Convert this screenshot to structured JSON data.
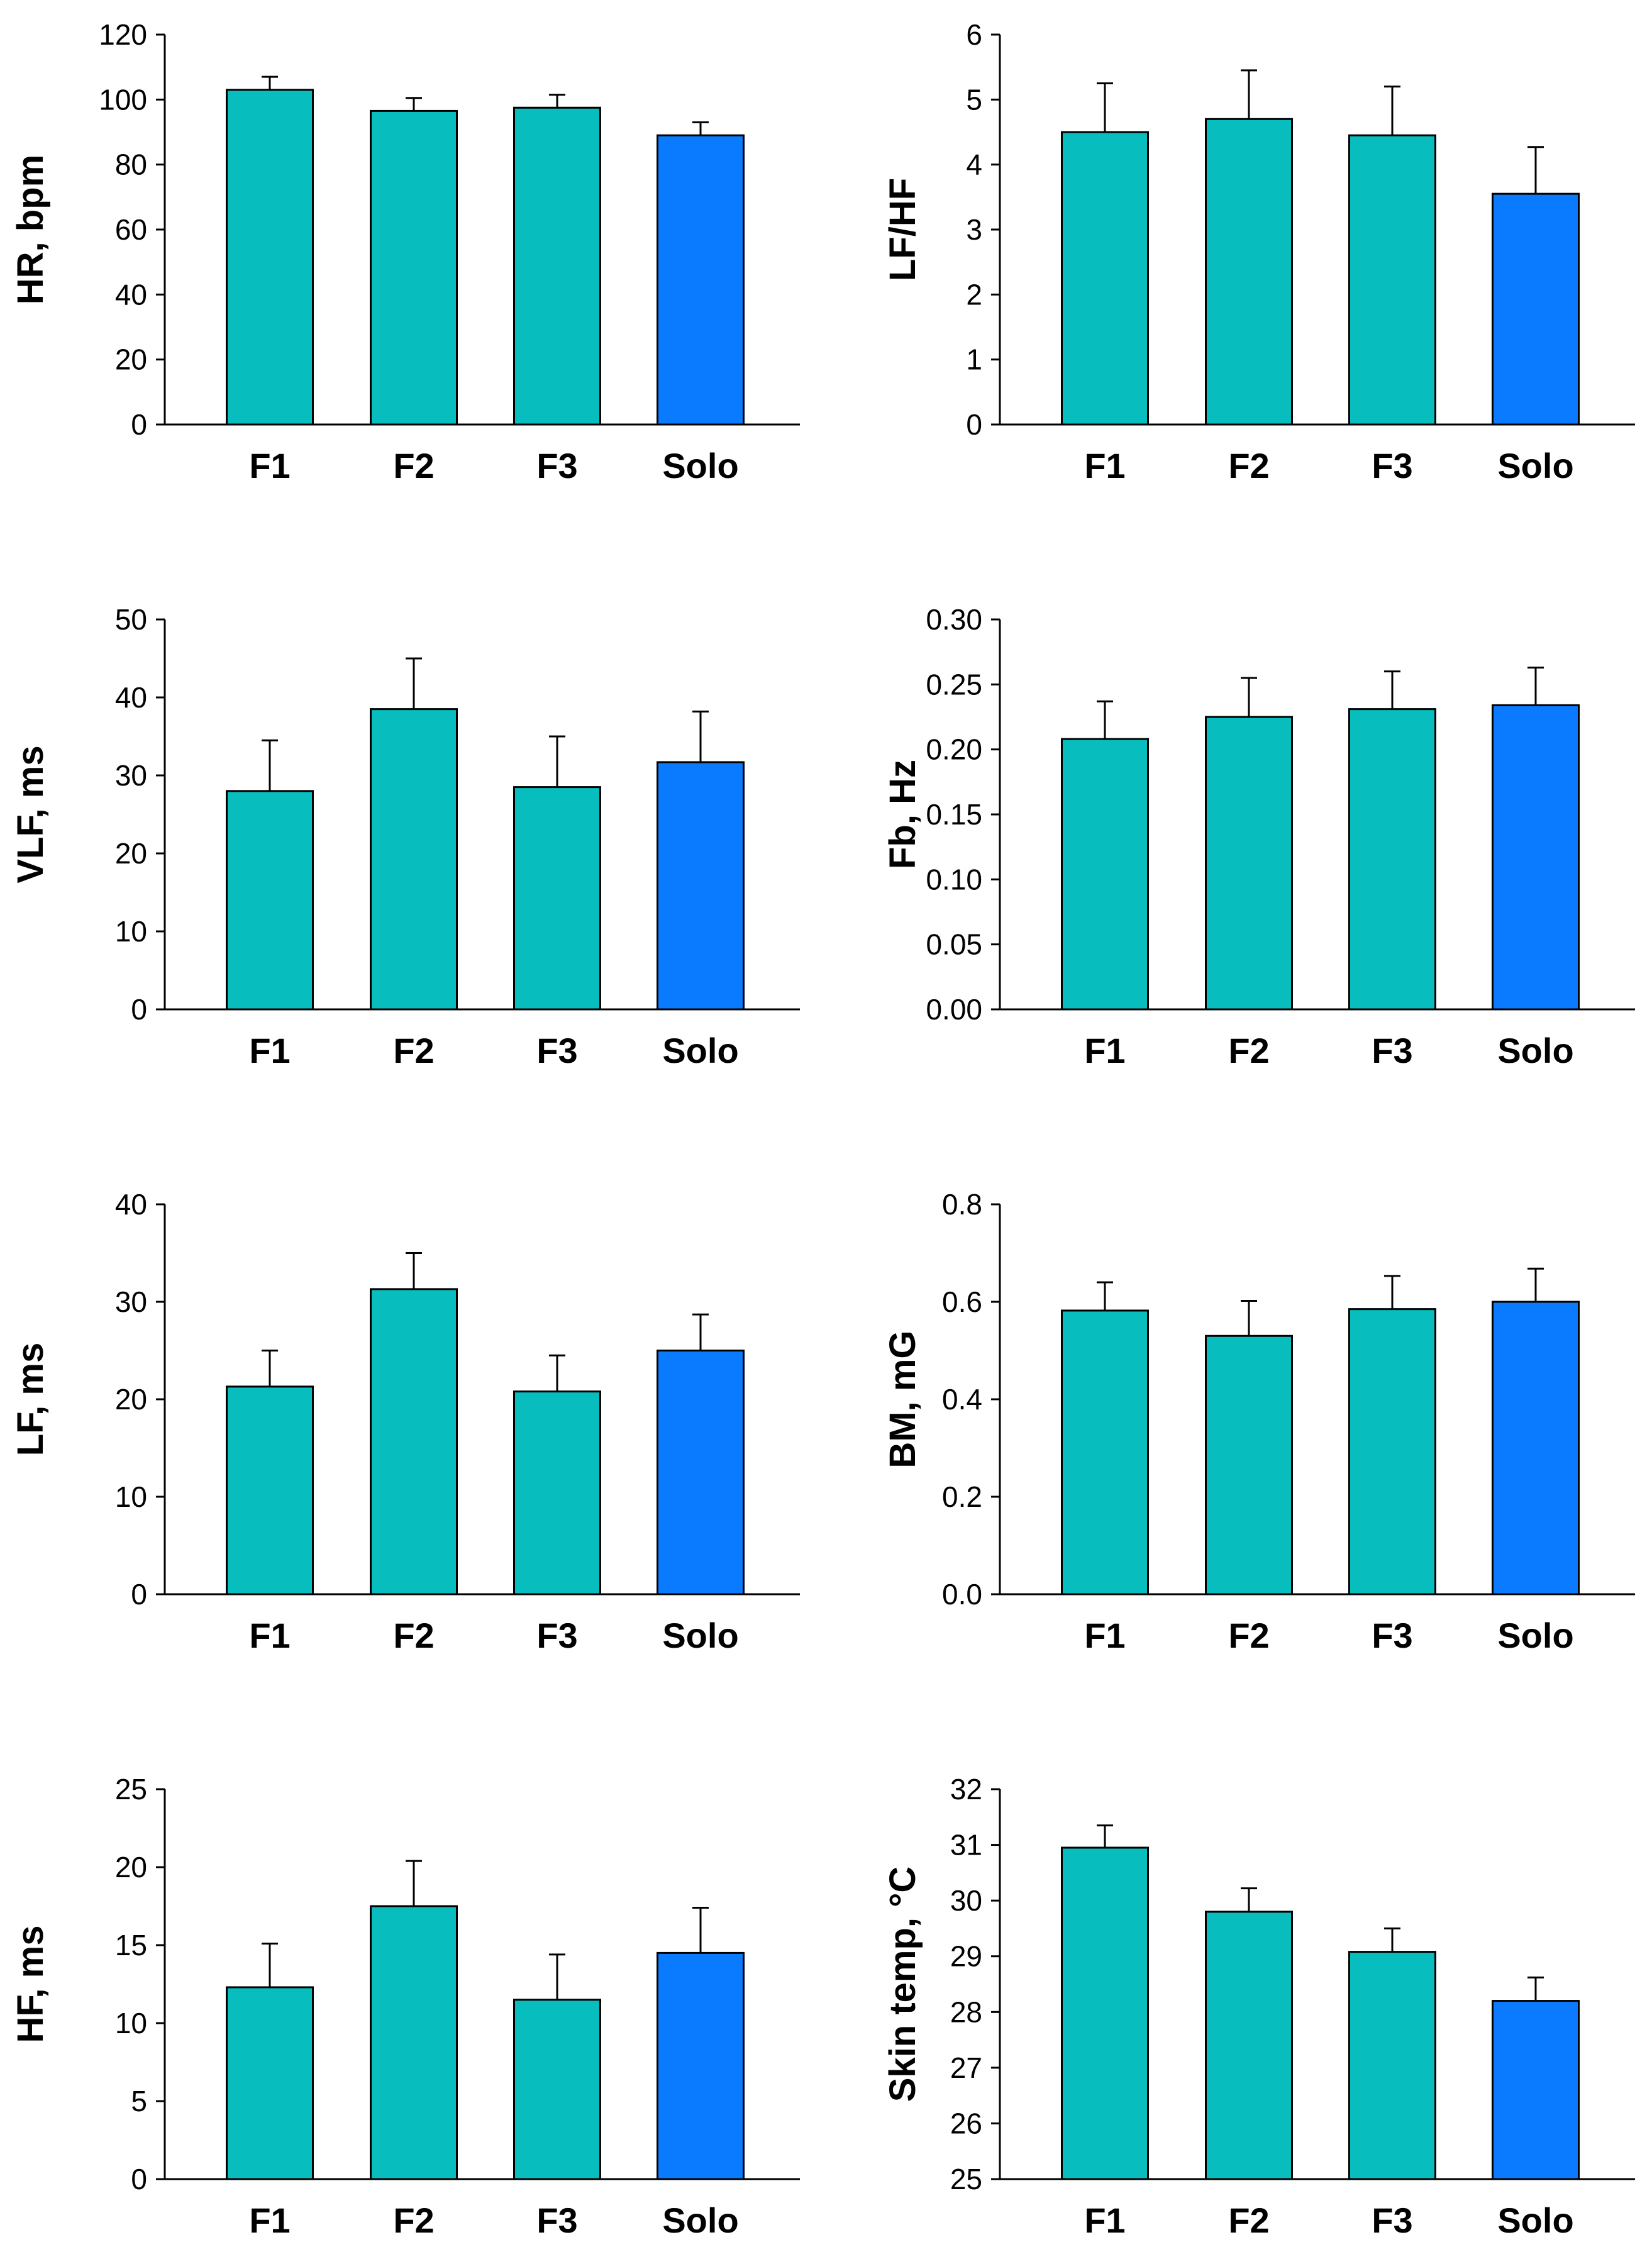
{
  "chart_data": [
    {
      "type": "bar",
      "categories": [
        "F1",
        "F2",
        "F3",
        "Solo"
      ],
      "values": [
        103,
        96.5,
        97.5,
        89
      ],
      "errors": [
        4,
        4,
        4,
        4
      ],
      "ylabel": "HR, bpm",
      "ylim": [
        0,
        120
      ],
      "yticks": [
        "0",
        "20",
        "40",
        "60",
        "80",
        "100",
        "120"
      ]
    },
    {
      "type": "bar",
      "categories": [
        "F1",
        "F2",
        "F3",
        "Solo"
      ],
      "values": [
        4.5,
        4.7,
        4.45,
        3.55
      ],
      "errors": [
        0.75,
        0.75,
        0.75,
        0.72
      ],
      "ylabel": "LF/HF",
      "ylim": [
        0,
        6
      ],
      "yticks": [
        "0",
        "1",
        "2",
        "3",
        "4",
        "5",
        "6"
      ]
    },
    {
      "type": "bar",
      "categories": [
        "F1",
        "F2",
        "F3",
        "Solo"
      ],
      "values": [
        28,
        38.5,
        28.5,
        31.7
      ],
      "errors": [
        6.5,
        6.5,
        6.5,
        6.5
      ],
      "ylabel": "VLF, ms",
      "ylim": [
        0,
        50
      ],
      "yticks": [
        "0",
        "10",
        "20",
        "30",
        "40",
        "50"
      ]
    },
    {
      "type": "bar",
      "categories": [
        "F1",
        "F2",
        "F3",
        "Solo"
      ],
      "values": [
        0.208,
        0.225,
        0.231,
        0.234
      ],
      "errors": [
        0.029,
        0.03,
        0.029,
        0.029
      ],
      "ylabel": "Fb, Hz",
      "ylim": [
        0,
        0.3
      ],
      "yticks": [
        "0.00",
        "0.05",
        "0.10",
        "0.15",
        "0.20",
        "0.25",
        "0.30"
      ]
    },
    {
      "type": "bar",
      "categories": [
        "F1",
        "F2",
        "F3",
        "Solo"
      ],
      "values": [
        21.3,
        31.3,
        20.8,
        25
      ],
      "errors": [
        3.7,
        3.7,
        3.7,
        3.7
      ],
      "ylabel": "LF, ms",
      "ylim": [
        0,
        40
      ],
      "yticks": [
        "0",
        "10",
        "20",
        "30",
        "40"
      ]
    },
    {
      "type": "bar",
      "categories": [
        "F1",
        "F2",
        "F3",
        "Solo"
      ],
      "values": [
        0.582,
        0.53,
        0.585,
        0.6
      ],
      "errors": [
        0.058,
        0.072,
        0.068,
        0.068
      ],
      "ylabel": "BM, mG",
      "ylim": [
        0,
        0.8
      ],
      "yticks": [
        "0.0",
        "0.2",
        "0.4",
        "0.6",
        "0.8"
      ]
    },
    {
      "type": "bar",
      "categories": [
        "F1",
        "F2",
        "F3",
        "Solo"
      ],
      "values": [
        12.3,
        17.5,
        11.5,
        14.5
      ],
      "errors": [
        2.8,
        2.9,
        2.9,
        2.9
      ],
      "ylabel": "HF, ms",
      "ylim": [
        0,
        25
      ],
      "yticks": [
        "0",
        "5",
        "10",
        "15",
        "20",
        "25"
      ]
    },
    {
      "type": "bar",
      "categories": [
        "F1",
        "F2",
        "F3",
        "Solo"
      ],
      "values": [
        30.95,
        29.8,
        29.08,
        28.2
      ],
      "errors": [
        0.4,
        0.42,
        0.42,
        0.42
      ],
      "ylabel": "Skin temp, °C",
      "ylim": [
        25,
        32
      ],
      "yticks": [
        "25",
        "26",
        "27",
        "28",
        "29",
        "30",
        "31",
        "32"
      ]
    }
  ],
  "colors": {
    "group_bar": "#07BDBD",
    "solo_bar": "#0A7BFF",
    "stroke": "#000000"
  }
}
